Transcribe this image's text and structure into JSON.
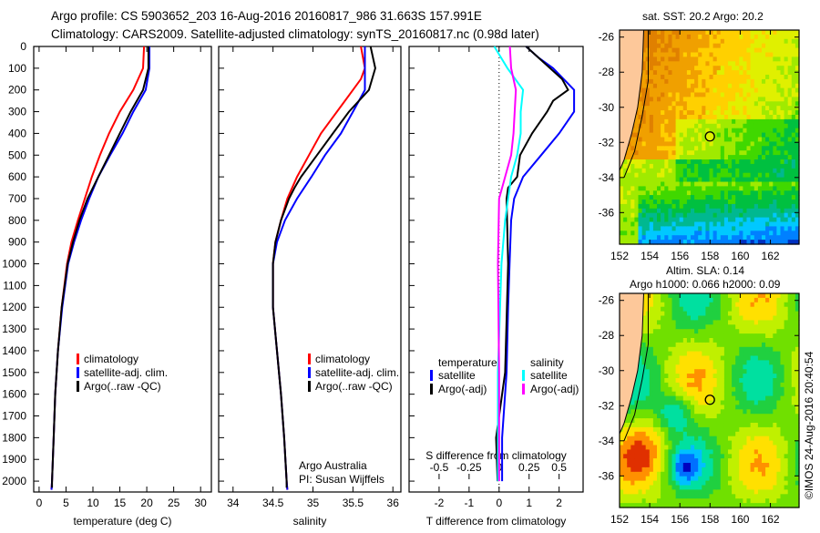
{
  "header": {
    "line1": "Argo profile: CS 5903652_203 16-Aug-2016 20160817_986 31.663S 157.991E",
    "line2": "Climatology: CARS2009. Satellite-adjusted climatology: synTS_20160817.nc (0.98d later)"
  },
  "credits": {
    "line1": "Argo Australia",
    "line2": "PI: Susan Wijffels"
  },
  "footer_stamp": "©IMOS 24-Aug-2016 20:40:54",
  "colors": {
    "climatology": "#ff0000",
    "satellite": "#0000ff",
    "argo": "#000000",
    "salinity_satellite": "#00ffff",
    "salinity_argo": "#ff00ff",
    "land": "#fdc89a"
  },
  "chart_data": [
    {
      "type": "line",
      "name": "temperature-profile",
      "xlabel": "temperature (deg C)",
      "ylabel": "depth",
      "xlim": [
        -1,
        32
      ],
      "ylim": [
        2050,
        0
      ],
      "xticks": [
        0,
        5,
        10,
        15,
        20,
        25,
        30
      ],
      "yticks": [
        0,
        100,
        200,
        300,
        400,
        500,
        600,
        700,
        800,
        900,
        1000,
        1100,
        1200,
        1300,
        1400,
        1500,
        1600,
        1700,
        1800,
        1900,
        2000
      ],
      "legend": [
        "climatology",
        "satellite-adj. clim.",
        "Argo(..raw -QC)"
      ],
      "series": [
        {
          "name": "climatology",
          "color": "#ff0000",
          "depth": [
            0,
            100,
            200,
            300,
            400,
            500,
            600,
            700,
            800,
            900,
            1000,
            1200,
            1400,
            1600,
            1800,
            2000,
            2040
          ],
          "values": [
            19.5,
            19.3,
            17.5,
            15,
            13,
            11.3,
            9.8,
            8.5,
            7.2,
            6,
            5.2,
            4.2,
            3.5,
            3,
            2.7,
            2.4,
            2.3
          ]
        },
        {
          "name": "satellite-adj. clim.",
          "color": "#0000ff",
          "depth": [
            0,
            100,
            200,
            300,
            400,
            500,
            600,
            700,
            800,
            900,
            1000,
            1200,
            1400,
            1600,
            1800,
            2000,
            2040
          ],
          "values": [
            20.5,
            20.5,
            19.8,
            17.5,
            15.5,
            13.2,
            11,
            9.3,
            7.8,
            6.5,
            5.4,
            4.3,
            3.5,
            3,
            2.7,
            2.4,
            2.3
          ]
        },
        {
          "name": "Argo(..raw -QC)",
          "color": "#000000",
          "depth": [
            0,
            100,
            200,
            300,
            400,
            500,
            600,
            700,
            800,
            900,
            1000,
            1200,
            1400,
            1600,
            1800,
            2000,
            2030
          ],
          "values": [
            20.3,
            20.3,
            19.3,
            17,
            15,
            13,
            11,
            9,
            7.5,
            6.3,
            5.3,
            4.2,
            3.5,
            3,
            2.7,
            2.4,
            2.4
          ]
        }
      ]
    },
    {
      "type": "line",
      "name": "salinity-profile",
      "xlabel": "salinity",
      "xlim": [
        33.82,
        36.1
      ],
      "ylim": [
        2050,
        0
      ],
      "xticks": [
        34,
        34.5,
        35,
        35.5,
        36
      ],
      "legend": [
        "climatology",
        "satellite-adj. clim.",
        "Argo(..raw -QC)"
      ],
      "series": [
        {
          "name": "climatology",
          "color": "#ff0000",
          "depth": [
            0,
            100,
            150,
            200,
            300,
            400,
            500,
            600,
            700,
            800,
            900,
            1000,
            1200,
            1400,
            1600,
            1800,
            2000,
            2040
          ],
          "values": [
            35.6,
            35.65,
            35.6,
            35.5,
            35.3,
            35.1,
            34.95,
            34.8,
            34.68,
            34.6,
            34.53,
            34.5,
            34.5,
            34.55,
            34.6,
            34.64,
            34.67,
            34.68
          ]
        },
        {
          "name": "satellite-adj. clim.",
          "color": "#0000ff",
          "depth": [
            0,
            100,
            200,
            300,
            400,
            500,
            600,
            700,
            800,
            900,
            1000,
            1200,
            1400,
            1600,
            1800,
            2000,
            2040
          ],
          "values": [
            35.65,
            35.65,
            35.65,
            35.5,
            35.35,
            35.15,
            34.98,
            34.8,
            34.65,
            34.55,
            34.5,
            34.5,
            34.55,
            34.6,
            34.64,
            34.67,
            34.68
          ]
        },
        {
          "name": "Argo(..raw -QC)",
          "color": "#000000",
          "depth": [
            0,
            100,
            200,
            300,
            400,
            500,
            600,
            650,
            700,
            800,
            900,
            1000,
            1200,
            1400,
            1600,
            1800,
            2000,
            2030
          ],
          "values": [
            35.72,
            35.78,
            35.7,
            35.45,
            35.25,
            35.05,
            34.85,
            34.77,
            34.7,
            34.6,
            34.53,
            34.5,
            34.5,
            34.55,
            34.6,
            34.64,
            34.67,
            34.67
          ]
        }
      ]
    },
    {
      "type": "line",
      "name": "difference-profile",
      "xlabel": "T difference from climatology",
      "x2label": "S difference from climatology",
      "xlim": [
        -3,
        2.8
      ],
      "ylim": [
        2050,
        0
      ],
      "xticks": [
        -2,
        -1,
        0,
        1,
        2
      ],
      "x2ticks": [
        -0.5,
        -0.25,
        0,
        0.25,
        0.5
      ],
      "x2ticklabels": [
        "-0.5",
        "-0.25",
        "0",
        "0.25",
        "0.5"
      ],
      "legend_title_t": "temperature",
      "legend_title_s": "salinity",
      "legend": [
        "satellite",
        "Argo(-adj)",
        "satellite",
        "Argo(-adj)"
      ],
      "series": [
        {
          "name": "T satellite",
          "color": "#0000ff",
          "unit": "T",
          "depth": [
            0,
            50,
            100,
            200,
            300,
            400,
            500,
            600,
            700,
            800,
            1000,
            1200,
            1500,
            1800,
            2000
          ],
          "values": [
            0.9,
            1.3,
            1.8,
            2.5,
            2.5,
            2.0,
            1.4,
            0.8,
            0.5,
            0.4,
            0.35,
            0.3,
            0.25,
            0.1,
            0.1
          ]
        },
        {
          "name": "T Argo(-adj)",
          "color": "#000000",
          "unit": "T",
          "depth": [
            0,
            100,
            150,
            200,
            250,
            300,
            400,
            500,
            600,
            650,
            700,
            1000,
            1500,
            1800,
            2000
          ],
          "values": [
            0.9,
            1.7,
            2.1,
            2.3,
            1.8,
            1.6,
            1.1,
            0.7,
            0.6,
            0.3,
            0.25,
            0.3,
            0.2,
            -0.1,
            -0.05
          ]
        },
        {
          "name": "S satellite",
          "color": "#00ffff",
          "unit": "S",
          "depth": [
            0,
            100,
            200,
            300,
            400,
            500,
            600,
            800,
            1000,
            1500,
            2000
          ],
          "values": [
            -0.04,
            0.07,
            0.2,
            0.18,
            0.18,
            0.15,
            0.1,
            0.05,
            0.02,
            -0.01,
            -0.01
          ]
        },
        {
          "name": "S Argo(-adj)",
          "color": "#ff00ff",
          "unit": "S",
          "depth": [
            0,
            100,
            200,
            300,
            400,
            500,
            600,
            700,
            1000,
            1500,
            2000
          ],
          "values": [
            0.09,
            0.1,
            0.14,
            0.13,
            0.12,
            0.1,
            0.05,
            0.0,
            -0.01,
            0,
            0
          ]
        }
      ]
    },
    {
      "type": "heatmap",
      "name": "sst-map",
      "title": "sat. SST: 20.2 Argo: 20.2",
      "xticks": [
        152,
        154,
        156,
        158,
        160,
        162
      ],
      "yticks": [
        -26,
        -28,
        -30,
        -32,
        -34,
        -36
      ],
      "xlim": [
        152,
        163.9
      ],
      "ylim": [
        -37.8,
        -25.6
      ],
      "marker": {
        "lon": 157.991,
        "lat": -31.663
      }
    },
    {
      "type": "heatmap",
      "name": "sla-map",
      "title": "Altim. SLA: 0.14",
      "subtitle": "Argo h1000: 0.066 h2000: 0.09",
      "xticks": [
        152,
        154,
        156,
        158,
        160,
        162
      ],
      "yticks": [
        -26,
        -28,
        -30,
        -32,
        -34,
        -36
      ],
      "xlim": [
        152,
        163.9
      ],
      "ylim": [
        -37.8,
        -25.6
      ],
      "marker": {
        "lon": 157.991,
        "lat": -31.663
      }
    }
  ]
}
